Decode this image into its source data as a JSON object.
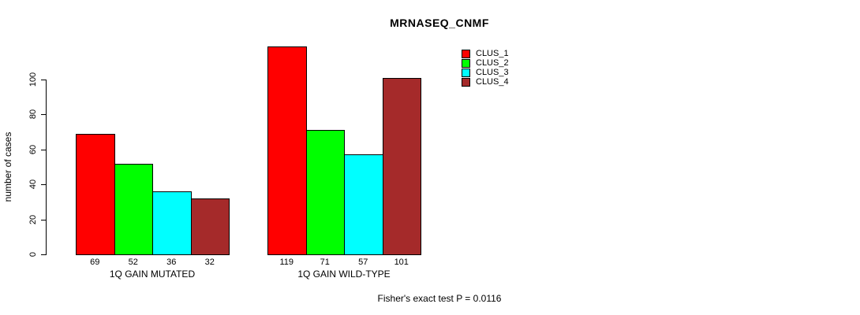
{
  "chart_data": {
    "type": "bar",
    "title": "MRNASEQ_CNMF",
    "ylabel": "number of cases",
    "xlabel": "",
    "yticks": [
      0,
      20,
      40,
      60,
      80,
      100
    ],
    "ylim": [
      0,
      100
    ],
    "grid": false,
    "legend_position": "top-right",
    "categories": [
      "1Q GAIN MUTATED",
      "1Q GAIN WILD-TYPE"
    ],
    "series": [
      {
        "name": "CLUS_1",
        "color": "#ff0000",
        "values": [
          69,
          119
        ]
      },
      {
        "name": "CLUS_2",
        "color": "#00ff00",
        "values": [
          52,
          71
        ]
      },
      {
        "name": "CLUS_3",
        "color": "#00ffff",
        "values": [
          36,
          57
        ]
      },
      {
        "name": "CLUS_4",
        "color": "#a52a2a",
        "values": [
          32,
          101
        ]
      }
    ],
    "groups": [
      {
        "label": "1Q GAIN MUTATED",
        "values": [
          69,
          52,
          36,
          32
        ]
      },
      {
        "label": "1Q GAIN WILD-TYPE",
        "values": [
          119,
          71,
          57,
          101
        ]
      }
    ],
    "bar_value_labels": [
      [
        69,
        52,
        36,
        32
      ],
      [
        119,
        71,
        57,
        101
      ]
    ],
    "annotation": "Fisher's exact test P = 0.0116"
  }
}
